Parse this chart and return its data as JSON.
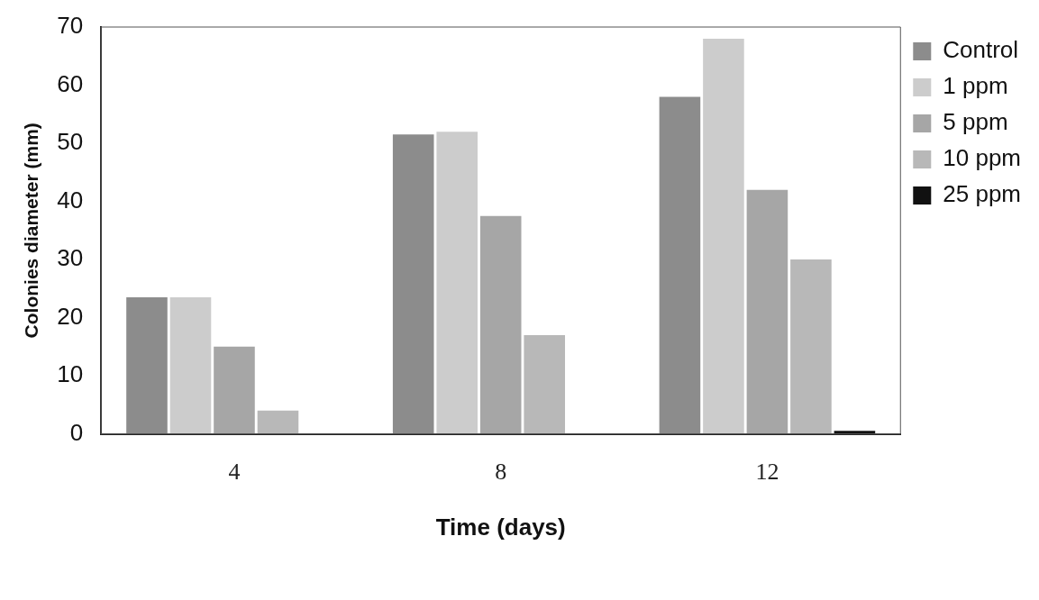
{
  "chart_data": {
    "type": "bar",
    "xlabel": "Time (days)",
    "ylabel": "Colonies diameter (mm)",
    "categories": [
      "4",
      "8",
      "12"
    ],
    "series": [
      {
        "name": "Control",
        "color": "#8c8c8c",
        "values": [
          23.5,
          51.5,
          58
        ]
      },
      {
        "name": "1 ppm",
        "color": "#cccccc",
        "values": [
          23.5,
          52,
          68
        ]
      },
      {
        "name": "5 ppm",
        "color": "#a6a6a6",
        "values": [
          15,
          37.5,
          42
        ]
      },
      {
        "name": "10 ppm",
        "color": "#b8b8b8",
        "values": [
          4,
          17,
          30
        ]
      },
      {
        "name": "25 ppm",
        "color": "#111111",
        "values": [
          0,
          0,
          0.5
        ]
      }
    ],
    "ylim": [
      0,
      70
    ],
    "yticks": [
      0,
      10,
      20,
      30,
      40,
      50,
      60,
      70
    ],
    "grid": false,
    "legend": "top right"
  }
}
